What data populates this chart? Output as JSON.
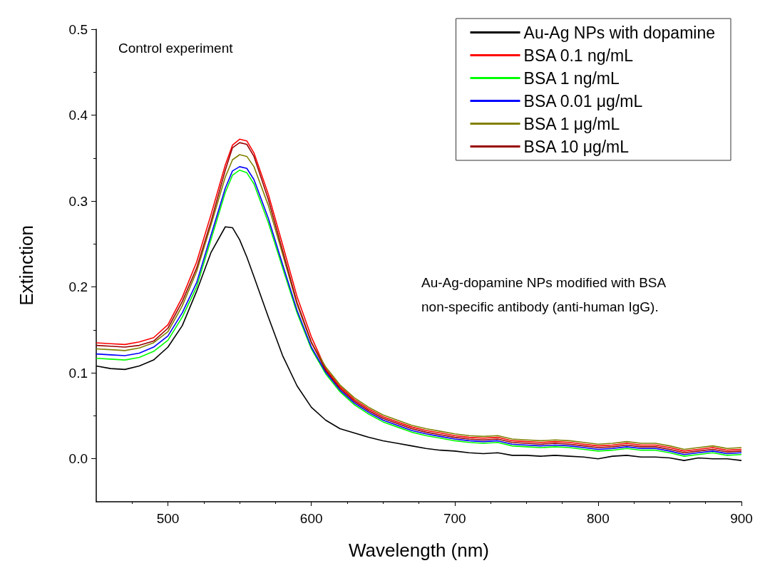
{
  "chart_data": {
    "type": "line",
    "xlabel": "Wavelength (nm)",
    "ylabel": "Extinction",
    "annotations": [
      "Control experiment",
      "Au-Ag-dopamine NPs modified with BSA non-specific antibody (anti-human IgG)."
    ],
    "x": [
      450,
      460,
      470,
      480,
      490,
      500,
      510,
      520,
      530,
      540,
      545,
      550,
      555,
      560,
      570,
      580,
      590,
      600,
      610,
      620,
      630,
      640,
      650,
      660,
      670,
      680,
      690,
      700,
      710,
      720,
      730,
      740,
      750,
      760,
      770,
      780,
      790,
      800,
      810,
      820,
      830,
      840,
      850,
      860,
      870,
      880,
      890,
      900
    ],
    "series": [
      {
        "name": "Au-Ag NPs with dopamine",
        "color": "#000000",
        "values": [
          0.108,
          0.105,
          0.104,
          0.108,
          0.115,
          0.13,
          0.155,
          0.195,
          0.24,
          0.27,
          0.269,
          0.255,
          0.235,
          0.212,
          0.165,
          0.12,
          0.085,
          0.06,
          0.045,
          0.035,
          0.03,
          0.025,
          0.021,
          0.018,
          0.015,
          0.012,
          0.01,
          0.009,
          0.007,
          0.006,
          0.007,
          0.004,
          0.004,
          0.003,
          0.004,
          0.003,
          0.002,
          0.0,
          0.003,
          0.004,
          0.002,
          0.002,
          0.001,
          -0.002,
          0.001,
          0.0,
          0.0,
          -0.002
        ]
      },
      {
        "name": "BSA 0.1 ng/mL",
        "color": "#ff0000",
        "values": [
          0.135,
          0.134,
          0.133,
          0.136,
          0.141,
          0.156,
          0.188,
          0.229,
          0.284,
          0.342,
          0.365,
          0.372,
          0.37,
          0.356,
          0.308,
          0.249,
          0.189,
          0.142,
          0.105,
          0.084,
          0.069,
          0.058,
          0.049,
          0.043,
          0.037,
          0.033,
          0.03,
          0.027,
          0.025,
          0.024,
          0.025,
          0.021,
          0.02,
          0.019,
          0.02,
          0.019,
          0.017,
          0.015,
          0.016,
          0.018,
          0.016,
          0.016,
          0.013,
          0.009,
          0.011,
          0.013,
          0.01,
          0.011
        ]
      },
      {
        "name": "BSA 1 ng/mL",
        "color": "#00ff00",
        "values": [
          0.117,
          0.116,
          0.115,
          0.118,
          0.125,
          0.138,
          0.165,
          0.2,
          0.255,
          0.31,
          0.33,
          0.336,
          0.333,
          0.32,
          0.275,
          0.222,
          0.17,
          0.128,
          0.099,
          0.078,
          0.063,
          0.052,
          0.043,
          0.037,
          0.031,
          0.027,
          0.024,
          0.021,
          0.019,
          0.018,
          0.019,
          0.015,
          0.014,
          0.013,
          0.014,
          0.013,
          0.011,
          0.009,
          0.01,
          0.012,
          0.01,
          0.01,
          0.007,
          0.003,
          0.005,
          0.007,
          0.004,
          0.005
        ]
      },
      {
        "name": "BSA 0.01 μg/mL",
        "color": "#0000ff",
        "values": [
          0.122,
          0.121,
          0.12,
          0.123,
          0.13,
          0.143,
          0.17,
          0.205,
          0.26,
          0.315,
          0.335,
          0.34,
          0.338,
          0.325,
          0.28,
          0.226,
          0.173,
          0.13,
          0.101,
          0.08,
          0.065,
          0.054,
          0.045,
          0.039,
          0.033,
          0.029,
          0.026,
          0.023,
          0.021,
          0.02,
          0.021,
          0.017,
          0.016,
          0.015,
          0.016,
          0.015,
          0.013,
          0.011,
          0.012,
          0.014,
          0.012,
          0.012,
          0.009,
          0.005,
          0.007,
          0.009,
          0.006,
          0.007
        ]
      },
      {
        "name": "BSA 1 μg/mL",
        "color": "#808000",
        "values": [
          0.128,
          0.127,
          0.126,
          0.129,
          0.135,
          0.148,
          0.178,
          0.218,
          0.272,
          0.328,
          0.348,
          0.354,
          0.352,
          0.34,
          0.295,
          0.238,
          0.18,
          0.135,
          0.107,
          0.086,
          0.071,
          0.06,
          0.051,
          0.045,
          0.039,
          0.035,
          0.032,
          0.029,
          0.027,
          0.026,
          0.027,
          0.023,
          0.022,
          0.021,
          0.022,
          0.021,
          0.019,
          0.017,
          0.018,
          0.02,
          0.018,
          0.018,
          0.015,
          0.011,
          0.013,
          0.015,
          0.012,
          0.013
        ]
      },
      {
        "name": "BSA 10 μg/mL",
        "color": "#990000",
        "values": [
          0.132,
          0.131,
          0.13,
          0.132,
          0.137,
          0.152,
          0.183,
          0.222,
          0.276,
          0.336,
          0.362,
          0.368,
          0.366,
          0.352,
          0.302,
          0.242,
          0.182,
          0.136,
          0.103,
          0.082,
          0.067,
          0.056,
          0.047,
          0.041,
          0.035,
          0.031,
          0.028,
          0.025,
          0.023,
          0.022,
          0.023,
          0.019,
          0.018,
          0.017,
          0.018,
          0.017,
          0.015,
          0.013,
          0.014,
          0.016,
          0.014,
          0.014,
          0.011,
          0.007,
          0.009,
          0.011,
          0.008,
          0.009
        ]
      }
    ],
    "xlim": [
      450,
      900
    ],
    "xticks": [
      500,
      600,
      700,
      800,
      900
    ],
    "ylim": [
      -0.05,
      0.5
    ],
    "yticks": [
      {
        "value": 0,
        "label": "0.0"
      },
      0.1,
      0.2,
      0.3,
      0.4,
      0.5
    ],
    "grid": false,
    "legend": "top right",
    "marker": "none",
    "line_style": "solid"
  }
}
